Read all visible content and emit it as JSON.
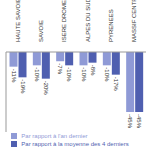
{
  "chart_data": {
    "type": "bar",
    "categories": [
      "HAUTE SAVOIE",
      "SAVOIE",
      "ISERE DROME",
      "ALPES DU SUD",
      "PYRENEES",
      "MASSIF CENTRAL"
    ],
    "series": [
      {
        "name": "Par rapport à l'an dernier",
        "color": "#8f9ad6",
        "values": [
          -11,
          -10,
          -7,
          -10,
          -10,
          -45
        ],
        "value_labels": [
          "-11%",
          "-10%",
          "-7%",
          "-10%",
          "-10%",
          "-45%"
        ]
      },
      {
        "name": "Par rapport à la moyenne des 4 derniers",
        "color": "#4f5fb0",
        "values": [
          -19,
          -20,
          -10,
          -8,
          -17,
          -45
        ],
        "value_labels": [
          "-19%",
          "-20%",
          "-10%",
          "-8%",
          "-17%",
          "-45%"
        ]
      }
    ],
    "ylim": [
      -60,
      0
    ],
    "tick_labels": "x",
    "data_labels": true,
    "legend": "bottom"
  }
}
